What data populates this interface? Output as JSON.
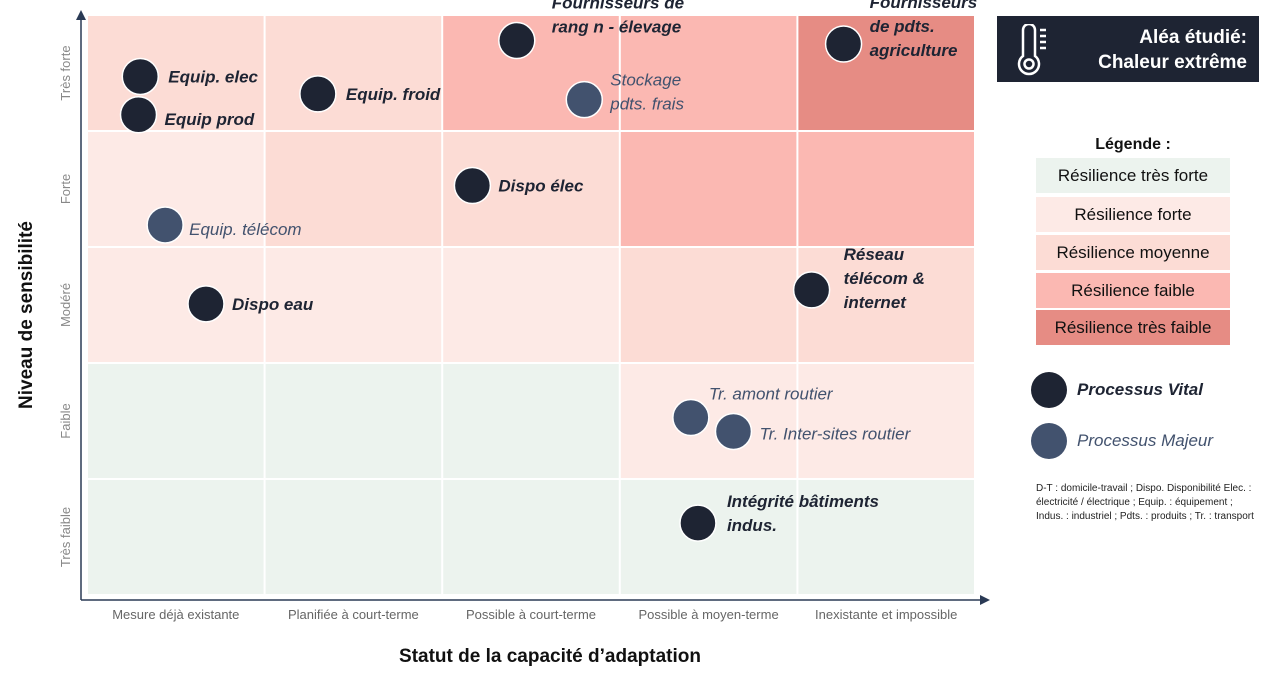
{
  "hazard": {
    "icon": "thermometer-icon",
    "line1": "Aléa étudié:",
    "line2": "Chaleur extrême"
  },
  "legend": {
    "title": "Légende :",
    "items": [
      {
        "label": "Résilience très forte",
        "color": "#ecf3ee"
      },
      {
        "label": "Résilience forte",
        "color": "#fdeae6"
      },
      {
        "label": "Résilience moyenne",
        "color": "#fcdcd5"
      },
      {
        "label": "Résilience faible",
        "color": "#fbb8b2"
      },
      {
        "label": "Résilience très faible",
        "color": "#e68c84"
      }
    ],
    "process_types": [
      {
        "label": "Processus Vital",
        "color": "#1e2433"
      },
      {
        "label": "Processus Majeur",
        "color": "#42526e"
      }
    ],
    "abbreviations": "D-T : domicile-travail ; Dispo. Disponibilité Elec. : électricité / électrique ; Equip. : équipement ; Indus. : industriel ; Pdts. : produits ; Tr. : transport"
  },
  "chart_data": {
    "type": "scatter",
    "xlabel": "Statut de la capacité d’adaptation",
    "ylabel": "Niveau de sensibilité",
    "x_categories": [
      "Mesure déjà existante",
      "Planifiée à court-terme",
      "Possible à court-terme",
      "Possible à moyen-terme",
      "Inexistante et impossible"
    ],
    "y_categories": [
      "Très faible",
      "Faible",
      "Modéré",
      "Forte",
      "Très forte"
    ],
    "cell_resilience_rows_top_to_bottom": [
      [
        "Résilience moyenne",
        "Résilience moyenne",
        "Résilience faible",
        "Résilience faible",
        "Résilience très faible"
      ],
      [
        "Résilience forte",
        "Résilience moyenne",
        "Résilience moyenne",
        "Résilience faible",
        "Résilience faible"
      ],
      [
        "Résilience forte",
        "Résilience forte",
        "Résilience forte",
        "Résilience moyenne",
        "Résilience moyenne"
      ],
      [
        "Résilience très forte",
        "Résilience très forte",
        "Résilience très forte",
        "Résilience forte",
        "Résilience forte"
      ],
      [
        "Résilience très forte",
        "Résilience très forte",
        "Résilience très forte",
        "Résilience très forte",
        "Résilience très forte"
      ]
    ],
    "points": [
      {
        "label": [
          "Equip. elec"
        ],
        "type": "Processus Vital",
        "x": 0.3,
        "y": 4.47
      },
      {
        "label": [
          "Equip prod"
        ],
        "type": "Processus Vital",
        "x": 0.29,
        "y": 4.14
      },
      {
        "label": [
          "Equip. froid"
        ],
        "type": "Processus Vital",
        "x": 1.3,
        "y": 4.32
      },
      {
        "label": [
          "Fournisseurs de",
          "rang n - élevage"
        ],
        "type": "Processus Vital",
        "x": 2.42,
        "y": 4.78
      },
      {
        "label": [
          "Stockage",
          "pdts. frais"
        ],
        "type": "Processus Majeur",
        "x": 2.8,
        "y": 4.27
      },
      {
        "label": [
          "Fournisseurs",
          "de pdts.",
          "agriculture"
        ],
        "type": "Processus Vital",
        "x": 4.26,
        "y": 4.75
      },
      {
        "label": [
          "Dispo élec"
        ],
        "type": "Processus Vital",
        "x": 2.17,
        "y": 3.53
      },
      {
        "label": [
          "Equip. télécom"
        ],
        "type": "Processus Majeur",
        "x": 0.44,
        "y": 3.19
      },
      {
        "label": [
          "Dispo eau"
        ],
        "type": "Processus Vital",
        "x": 0.67,
        "y": 2.51
      },
      {
        "label": [
          "Réseau",
          "télécom &",
          "internet"
        ],
        "type": "Processus Vital",
        "x": 4.08,
        "y": 2.63
      },
      {
        "label": [
          "Tr. amont routier"
        ],
        "type": "Processus Majeur",
        "x": 3.4,
        "y": 1.53
      },
      {
        "label": [
          "Tr. Inter-sites routier"
        ],
        "type": "Processus Majeur",
        "x": 3.64,
        "y": 1.41
      },
      {
        "label": [
          "Intégrité bâtiments",
          "indus."
        ],
        "type": "Processus Vital",
        "x": 3.44,
        "y": 0.62
      }
    ]
  }
}
